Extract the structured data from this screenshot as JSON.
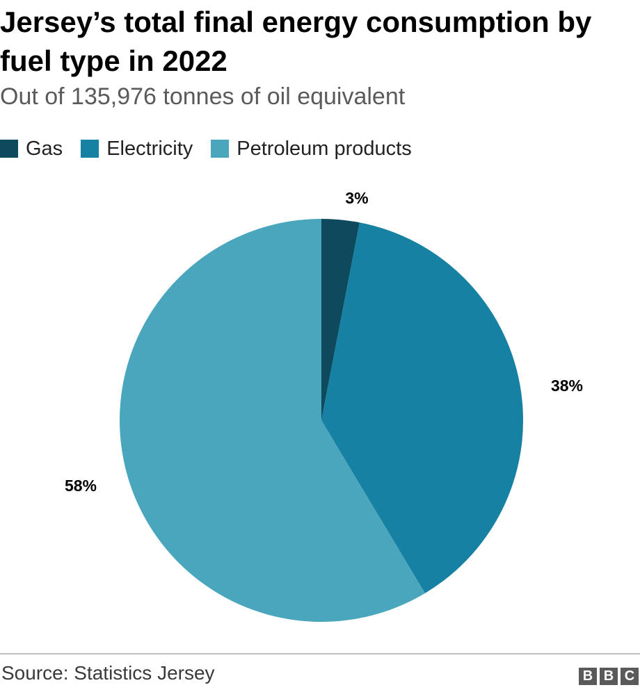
{
  "header": {
    "title": "Jersey’s total final energy consumption by fuel type in 2022",
    "subtitle": "Out of 135,976 tonnes of oil equivalent"
  },
  "colors": {
    "gas": "#0d4a5e",
    "electricity": "#1681a2",
    "petroleum": "#4aa6bc"
  },
  "chart_data": {
    "type": "pie",
    "title": "Jersey’s total final energy consumption by fuel type in 2022",
    "subtitle": "Out of 135,976 tonnes of oil equivalent",
    "total_toe": 135976,
    "legend_position": "top-left",
    "slices": [
      {
        "name": "Gas",
        "value": 3,
        "label": "3%",
        "color": "#0d4a5e"
      },
      {
        "name": "Electricity",
        "value": 38,
        "label": "38%",
        "color": "#1681a2"
      },
      {
        "name": "Petroleum products",
        "value": 58,
        "label": "58%",
        "color": "#4aa6bc"
      }
    ]
  },
  "footer": {
    "source": "Source: Statistics Jersey",
    "logo_letters": [
      "B",
      "B",
      "C"
    ]
  }
}
